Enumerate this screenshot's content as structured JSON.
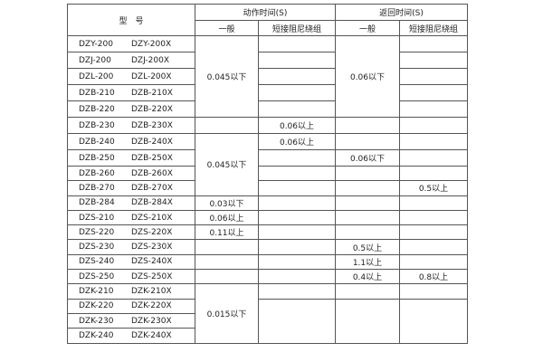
{
  "header": {
    "model": "型　号",
    "action_time": "动作时间(S)",
    "return_time": "返回时间(S)",
    "general": "一般",
    "short_winding": "短接阻尼绕组"
  },
  "rows": [
    {
      "a": "DZY-200",
      "b": "DZY-200X"
    },
    {
      "a": "DZJ-200",
      "b": "DZJ-200X"
    },
    {
      "a": "DZL-200",
      "b": "DZL-200X"
    },
    {
      "a": "DZB-210",
      "b": "DZB-210X"
    },
    {
      "a": "DZB-220",
      "b": "DZB-220X"
    },
    {
      "a": "DZB-230",
      "b": "DZB-230X"
    },
    {
      "a": "DZB-240",
      "b": "DZB-240X"
    },
    {
      "a": "DZB-250",
      "b": "DZB-250X"
    },
    {
      "a": "DZB-260",
      "b": "DZB-260X"
    },
    {
      "a": "DZB-270",
      "b": "DZB-270X"
    },
    {
      "a": "DZB-284",
      "b": "DZB-284X"
    },
    {
      "a": "DZS-210",
      "b": "DZS-210X"
    },
    {
      "a": "DZS-220",
      "b": "DZS-220X"
    },
    {
      "a": "DZS-230",
      "b": "DZS-230X"
    },
    {
      "a": "DZS-240",
      "b": "DZS-240X"
    },
    {
      "a": "DZS-250",
      "b": "DZS-250X"
    },
    {
      "a": "DZK-210",
      "b": "DZK-210X"
    },
    {
      "a": "DZK-220",
      "b": "DZK-220X"
    },
    {
      "a": "DZK-230",
      "b": "DZK-230X"
    },
    {
      "a": "DZK-240",
      "b": "DZK-240X"
    }
  ],
  "values": {
    "act_gen_1_5": "0.045以下",
    "act_gen_7_10": "0.045以下",
    "act_gen_284": "0.03以下",
    "act_gen_s210": "0.06以上",
    "act_gen_s220": "0.11以上",
    "act_gen_dzk": "0.015以下",
    "act_short_230": "0.06以上",
    "act_short_240": "0.06以上",
    "ret_gen_1_5": "0.06以下",
    "ret_gen_250": "0.06以下",
    "ret_gen_s230": "0.5以上",
    "ret_gen_s240": "1.1以上",
    "ret_gen_s250": "0.4以上",
    "ret_short_270": "0.5以上",
    "ret_short_s250": "0.8以上"
  }
}
